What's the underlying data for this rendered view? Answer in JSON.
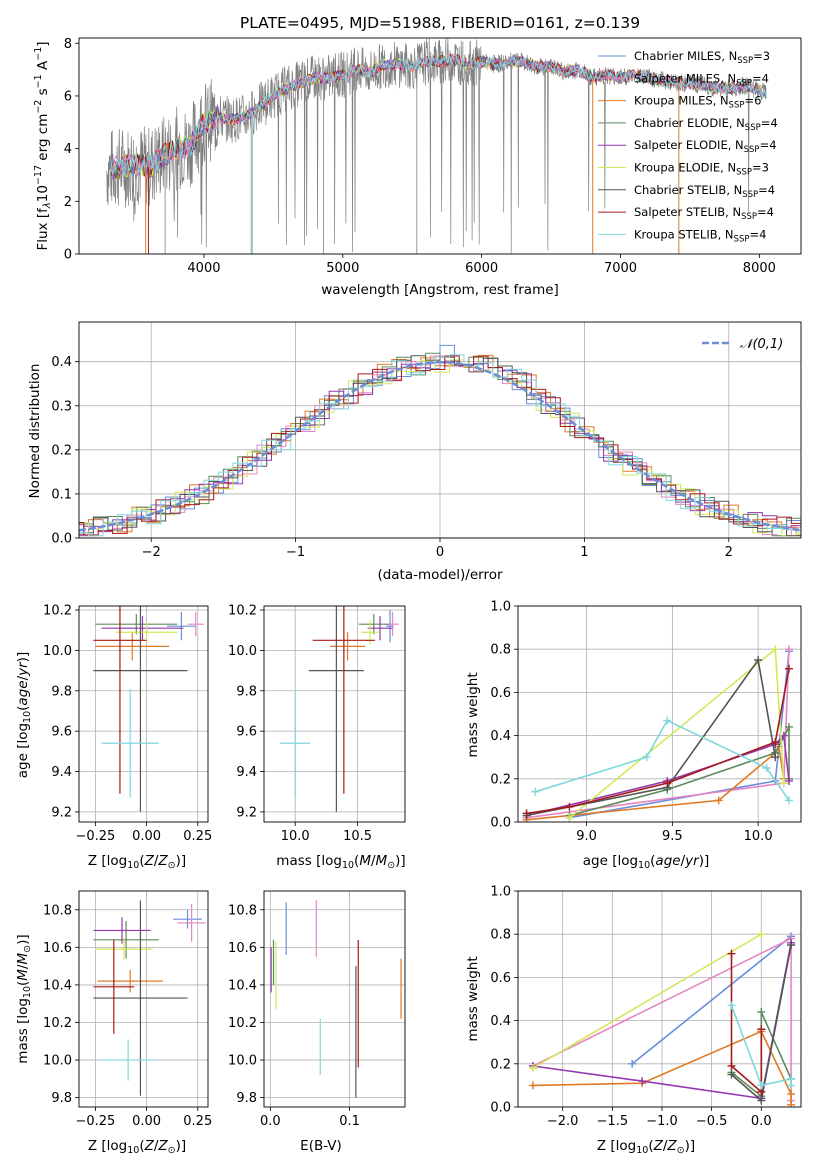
{
  "title": "PLATE=0495, MJD=51988, FIBERID=0161, z=0.139",
  "colors": {
    "Chabrier MILES": "#6a8fd8",
    "Salpeter MILES": "#e884c4",
    "Kroupa MILES": "#e07a26",
    "Chabrier ELODIE": "#5c8a5c",
    "Salpeter ELODIE": "#9437b0",
    "Kroupa ELODIE": "#d2e85a",
    "Chabrier STELIB": "#555555",
    "Salpeter STELIB": "#a51a1a",
    "Kroupa STELIB": "#7fd8dc"
  },
  "chart_data": [
    {
      "type": "line",
      "name": "spectrum",
      "xlabel": "wavelength [Angstrom, rest frame]",
      "ylabel": "Flux [f",
      "xlim": [
        3100,
        8300
      ],
      "ylim": [
        0,
        8.2
      ],
      "xticks": [
        "4000",
        "5000",
        "6000",
        "7000",
        "8000"
      ],
      "yticks": [
        "0",
        "2",
        "4",
        "6",
        "8"
      ],
      "legend_loc": "right",
      "legend": [
        {
          "label": "Chabrier MILES, N",
          "n": "3"
        },
        {
          "label": "Salpeter MILES, N",
          "n": "4"
        },
        {
          "label": "Kroupa MILES, N",
          "n": "6"
        },
        {
          "label": "Chabrier ELODIE, N",
          "n": "4"
        },
        {
          "label": "Salpeter ELODIE, N",
          "n": "4"
        },
        {
          "label": "Kroupa ELODIE, N",
          "n": "3"
        },
        {
          "label": "Chabrier STELIB, N",
          "n": "4"
        },
        {
          "label": "Salpeter STELIB, N",
          "n": "4"
        },
        {
          "label": "Kroupa STELIB, N",
          "n": "4"
        }
      ],
      "data_x": [
        3300,
        3400,
        3500,
        3600,
        3700,
        3800,
        3900,
        4000,
        4100,
        4200,
        4300,
        4400,
        4500,
        4600,
        4700,
        4800,
        4900,
        5000,
        5100,
        5200,
        5300,
        5400,
        5500,
        5600,
        5700,
        5800,
        5900,
        6000,
        6100,
        6200,
        6300,
        6400,
        6500,
        6600,
        6700,
        6800,
        6900,
        7000,
        7100,
        7200,
        7300,
        7400,
        7500,
        7600,
        7700,
        7800,
        7900,
        8000,
        8050
      ],
      "data_y": [
        3.2,
        3.3,
        3.4,
        3.3,
        3.7,
        4.0,
        4.1,
        5.0,
        5.2,
        5.1,
        5.2,
        5.6,
        6.0,
        6.3,
        6.5,
        6.7,
        6.7,
        6.8,
        7.0,
        6.9,
        7.2,
        7.2,
        7.1,
        7.3,
        7.3,
        7.4,
        7.2,
        7.3,
        7.2,
        7.3,
        7.3,
        7.1,
        7.1,
        6.9,
        7.0,
        6.7,
        6.8,
        6.7,
        6.8,
        6.7,
        6.6,
        6.5,
        6.5,
        6.4,
        6.3,
        6.3,
        6.4,
        6.2,
        6.1
      ]
    },
    {
      "type": "line",
      "name": "residual histogram",
      "xlabel": "(data-model)/error",
      "ylabel": "Normed distribution",
      "xlim": [
        -2.5,
        2.5
      ],
      "ylim": [
        0,
        0.49
      ],
      "xticks": [
        "−2",
        "−1",
        "0",
        "1",
        "2"
      ],
      "yticks": [
        "0.0",
        "0.1",
        "0.2",
        "0.3",
        "0.4"
      ],
      "grid": true,
      "legend_label": "𝒩(0,1)",
      "legend_loc": "top-right",
      "gaussian": {
        "mean": 0,
        "sigma": 1
      }
    },
    {
      "type": "scatter",
      "name": "age vs Z",
      "xlabel": "Z [log",
      "ylabel": "age  [log",
      "xlim": [
        -0.33,
        0.3
      ],
      "ylim": [
        9.15,
        10.22
      ],
      "xticks": [
        "−0.25",
        "0.00",
        "0.25"
      ],
      "yticks": [
        "9.2",
        "9.4",
        "9.6",
        "9.8",
        "10.0",
        "10.2"
      ],
      "grid": true,
      "points": [
        {
          "model": "Chabrier MILES",
          "x": 0.17,
          "xerr": 0.07,
          "y": 10.12,
          "yerr": 0.07
        },
        {
          "model": "Salpeter MILES",
          "x": 0.24,
          "xerr": 0.04,
          "y": 10.13,
          "yerr": 0.06
        },
        {
          "model": "Kroupa MILES",
          "x": -0.07,
          "xerr": 0.18,
          "y": 10.02,
          "yerr": 0.07
        },
        {
          "model": "Chabrier ELODIE",
          "x": -0.05,
          "xerr": 0.2,
          "y": 10.13,
          "yerr": 0.05
        },
        {
          "model": "Salpeter ELODIE",
          "x": -0.02,
          "xerr": 0.2,
          "y": 10.11,
          "yerr": 0.06
        },
        {
          "model": "Kroupa ELODIE",
          "x": 0.0,
          "xerr": 0.15,
          "y": 10.09,
          "yerr": 0.05
        },
        {
          "model": "Chabrier STELIB",
          "x": -0.03,
          "xerr": 0.23,
          "y": 9.9,
          "yerr": 0.7
        },
        {
          "model": "Salpeter STELIB",
          "x": -0.13,
          "xerr": 0.13,
          "y": 10.05,
          "yerr": 0.76
        },
        {
          "model": "Kroupa STELIB",
          "x": -0.08,
          "xerr": 0.14,
          "y": 9.54,
          "yerr": 0.27
        }
      ]
    },
    {
      "type": "scatter",
      "name": "age vs mass",
      "xlabel": "mass [log",
      "ylabel": "",
      "xlim": [
        9.75,
        10.88
      ],
      "ylim": [
        9.15,
        10.22
      ],
      "xticks": [
        "10.0",
        "10.5"
      ],
      "yticks": [
        "9.2",
        "9.4",
        "9.6",
        "9.8",
        "10.0",
        "10.2"
      ],
      "grid": true,
      "points": [
        {
          "model": "Chabrier MILES",
          "x": 10.76,
          "xerr": 0.03,
          "y": 10.12,
          "yerr": 0.08
        },
        {
          "model": "Salpeter MILES",
          "x": 10.78,
          "xerr": 0.05,
          "y": 10.13,
          "yerr": 0.06
        },
        {
          "model": "Kroupa MILES",
          "x": 10.42,
          "xerr": 0.14,
          "y": 10.02,
          "yerr": 0.07
        },
        {
          "model": "Chabrier ELODIE",
          "x": 10.63,
          "xerr": 0.12,
          "y": 10.13,
          "yerr": 0.05
        },
        {
          "model": "Salpeter ELODIE",
          "x": 10.68,
          "xerr": 0.1,
          "y": 10.11,
          "yerr": 0.06
        },
        {
          "model": "Kroupa ELODIE",
          "x": 10.6,
          "xerr": 0.07,
          "y": 10.09,
          "yerr": 0.06
        },
        {
          "model": "Chabrier STELIB",
          "x": 10.33,
          "xerr": 0.22,
          "y": 9.9,
          "yerr": 0.7
        },
        {
          "model": "Salpeter STELIB",
          "x": 10.39,
          "xerr": 0.25,
          "y": 10.05,
          "yerr": 0.76
        },
        {
          "model": "Kroupa STELIB",
          "x": 10.0,
          "xerr": 0.12,
          "y": 9.54,
          "yerr": 0.27
        }
      ]
    },
    {
      "type": "line",
      "name": "mass weight vs age",
      "xlabel": "age  [log",
      "ylabel": "mass weight",
      "xlim": [
        8.6,
        10.25
      ],
      "ylim": [
        0,
        1.0
      ],
      "xticks": [
        "9.0",
        "9.5",
        "10.0"
      ],
      "yticks": [
        "0.0",
        "0.2",
        "0.4",
        "0.6",
        "0.8",
        "1.0"
      ],
      "grid": true,
      "series": [
        {
          "model": "Chabrier MILES",
          "x": [
            8.9,
            10.1,
            10.18
          ],
          "y": [
            0.02,
            0.19,
            0.79
          ]
        },
        {
          "model": "Salpeter MILES",
          "x": [
            8.65,
            10.15,
            10.18
          ],
          "y": [
            0.02,
            0.18,
            0.8
          ]
        },
        {
          "model": "Kroupa MILES",
          "x": [
            8.65,
            9.77,
            10.1,
            10.12,
            10.15
          ],
          "y": [
            0.01,
            0.1,
            0.32,
            0.35,
            0.2
          ]
        },
        {
          "model": "Chabrier ELODIE",
          "x": [
            8.9,
            9.47,
            10.1,
            10.18,
            10.18
          ],
          "y": [
            0.03,
            0.15,
            0.32,
            0.44,
            0.2
          ]
        },
        {
          "model": "Salpeter ELODIE",
          "x": [
            8.65,
            9.47,
            10.1,
            10.15,
            10.18
          ],
          "y": [
            0.03,
            0.19,
            0.36,
            0.4,
            0.19
          ]
        },
        {
          "model": "Kroupa ELODIE",
          "x": [
            8.9,
            10.1,
            10.15
          ],
          "y": [
            0.02,
            0.8,
            0.18
          ]
        },
        {
          "model": "Chabrier STELIB",
          "x": [
            8.65,
            9.47,
            10.0,
            10.1
          ],
          "y": [
            0.03,
            0.16,
            0.75,
            0.3
          ]
        },
        {
          "model": "Salpeter STELIB",
          "x": [
            8.65,
            8.9,
            9.47,
            10.1,
            10.18
          ],
          "y": [
            0.04,
            0.07,
            0.18,
            0.37,
            0.71
          ]
        },
        {
          "model": "Kroupa STELIB",
          "x": [
            8.7,
            9.35,
            9.47,
            10.05,
            10.18
          ],
          "y": [
            0.14,
            0.3,
            0.47,
            0.25,
            0.1
          ]
        }
      ]
    },
    {
      "type": "scatter",
      "name": "mass vs Z",
      "xlabel": "Z [log",
      "ylabel": "mass [log",
      "xlim": [
        -0.33,
        0.3
      ],
      "ylim": [
        9.75,
        10.9
      ],
      "xticks": [
        "−0.25",
        "0.00",
        "0.25"
      ],
      "yticks": [
        "9.8",
        "10.0",
        "10.2",
        "10.4",
        "10.6",
        "10.8"
      ],
      "grid": true,
      "points": [
        {
          "model": "Chabrier MILES",
          "x": 0.2,
          "xerr": 0.07,
          "y": 10.75,
          "yerr": 0.05
        },
        {
          "model": "Salpeter MILES",
          "x": 0.22,
          "xerr": 0.07,
          "y": 10.73,
          "yerr": 0.1
        },
        {
          "model": "Kroupa MILES",
          "x": -0.08,
          "xerr": 0.16,
          "y": 10.42,
          "yerr": 0.06
        },
        {
          "model": "Chabrier ELODIE",
          "x": -0.1,
          "xerr": 0.16,
          "y": 10.64,
          "yerr": 0.1
        },
        {
          "model": "Salpeter ELODIE",
          "x": -0.12,
          "xerr": 0.14,
          "y": 10.69,
          "yerr": 0.07
        },
        {
          "model": "Kroupa ELODIE",
          "x": -0.11,
          "xerr": 0.14,
          "y": 10.59,
          "yerr": 0.06
        },
        {
          "model": "Chabrier STELIB",
          "x": -0.03,
          "xerr": 0.23,
          "y": 10.33,
          "yerr": 0.52
        },
        {
          "model": "Salpeter STELIB",
          "x": -0.16,
          "xerr": 0.1,
          "y": 10.39,
          "yerr": 0.25
        },
        {
          "model": "Kroupa STELIB",
          "x": -0.09,
          "xerr": 0.13,
          "y": 10.0,
          "yerr": 0.11
        }
      ]
    },
    {
      "type": "scatter",
      "name": "mass vs E(B-V)",
      "xlabel": "E(B-V)",
      "ylabel": "",
      "xlim": [
        -0.008,
        0.17
      ],
      "ylim": [
        9.75,
        10.9
      ],
      "xticks": [
        "0.0",
        "0.1"
      ],
      "yticks": [
        "9.8",
        "10.0",
        "10.2",
        "10.4",
        "10.6",
        "10.8"
      ],
      "grid": true,
      "points": [
        {
          "model": "Chabrier MILES",
          "x": 0.02,
          "y": 10.7,
          "yerr": 0.14
        },
        {
          "model": "Salpeter MILES",
          "x": 0.058,
          "y": 10.7,
          "yerr": 0.15
        },
        {
          "model": "Kroupa MILES",
          "x": 0.165,
          "y": 10.38,
          "yerr": 0.16
        },
        {
          "model": "Chabrier ELODIE",
          "x": 0.004,
          "y": 10.52,
          "yerr": 0.12
        },
        {
          "model": "Salpeter ELODIE",
          "x": 0.001,
          "y": 10.48,
          "yerr": 0.12
        },
        {
          "model": "Kroupa ELODIE",
          "x": 0.007,
          "y": 10.45,
          "yerr": 0.18
        },
        {
          "model": "Chabrier STELIB",
          "x": 0.108,
          "y": 10.15,
          "yerr": 0.35
        },
        {
          "model": "Salpeter STELIB",
          "x": 0.111,
          "y": 10.3,
          "yerr": 0.34
        },
        {
          "model": "Kroupa STELIB",
          "x": 0.063,
          "y": 10.07,
          "yerr": 0.15
        }
      ]
    },
    {
      "type": "line",
      "name": "mass weight vs Z",
      "xlabel": "Z [log",
      "ylabel": "mass weight",
      "xlim": [
        -2.45,
        0.4
      ],
      "ylim": [
        0,
        1.0
      ],
      "xticks": [
        "−2.0",
        "−1.5",
        "−1.0",
        "−0.5",
        "0.0"
      ],
      "yticks": [
        "0.0",
        "0.2",
        "0.4",
        "0.6",
        "0.8",
        "1.0"
      ],
      "grid": true,
      "series": [
        {
          "model": "Chabrier MILES",
          "x": [
            -1.3,
            0.3
          ],
          "y": [
            0.2,
            0.79
          ]
        },
        {
          "model": "Salpeter MILES",
          "x": [
            -2.3,
            0.3,
            0.3
          ],
          "y": [
            0.19,
            0.78,
            0.03
          ]
        },
        {
          "model": "Kroupa MILES",
          "x": [
            -2.3,
            -1.2,
            0.0,
            0.3,
            0.3
          ],
          "y": [
            0.1,
            0.11,
            0.35,
            0.06,
            0.01
          ]
        },
        {
          "model": "Chabrier ELODIE",
          "x": [
            -0.3,
            0.0,
            0.0,
            0.3
          ],
          "y": [
            0.16,
            0.05,
            0.44,
            0.13
          ]
        },
        {
          "model": "Salpeter ELODIE",
          "x": [
            -2.3,
            -1.2,
            0.0,
            0.3
          ],
          "y": [
            0.19,
            0.12,
            0.04,
            0.76
          ]
        },
        {
          "model": "Kroupa ELODIE",
          "x": [
            -2.3,
            0.0
          ],
          "y": [
            0.18,
            0.8
          ]
        },
        {
          "model": "Chabrier STELIB",
          "x": [
            -0.3,
            0.0,
            0.3
          ],
          "y": [
            0.15,
            0.03,
            0.75
          ]
        },
        {
          "model": "Salpeter STELIB",
          "x": [
            -0.3,
            -0.3,
            0.0,
            0.0
          ],
          "y": [
            0.71,
            0.19,
            0.07,
            0.36
          ]
        },
        {
          "model": "Kroupa STELIB",
          "x": [
            -0.3,
            0.0,
            0.3,
            0.3
          ],
          "y": [
            0.47,
            0.1,
            0.13,
            0.1
          ]
        }
      ]
    }
  ]
}
